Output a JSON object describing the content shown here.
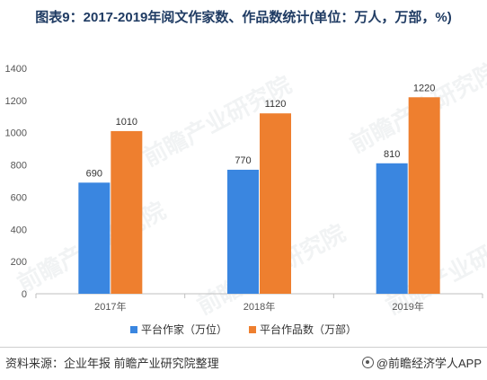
{
  "title": "图表9：2017-2019年阅文作家数、作品数统计(单位：万人，万部，%)",
  "footer": {
    "source": "资料来源：企业年报 前瞻产业研究院整理",
    "brand": "@前瞻经济学人APP"
  },
  "watermark": "前瞻产业研究院",
  "colors": {
    "series1": "#3a86e0",
    "series2": "#ee7f2f",
    "axis": "#bfbfbf",
    "tick_text": "#555555"
  },
  "chart_data": {
    "type": "bar",
    "categories": [
      "2017年",
      "2018年",
      "2019年"
    ],
    "series": [
      {
        "name": "平台作家（万位）",
        "values": [
          690,
          770,
          810
        ]
      },
      {
        "name": "平台作品数（万部）",
        "values": [
          1010,
          1120,
          1220
        ]
      }
    ],
    "ylim": [
      0,
      1400
    ],
    "yticks": [
      0,
      200,
      400,
      600,
      800,
      1000,
      1200,
      1400
    ],
    "grid": false,
    "legend": "bottom",
    "data_labels": true
  }
}
